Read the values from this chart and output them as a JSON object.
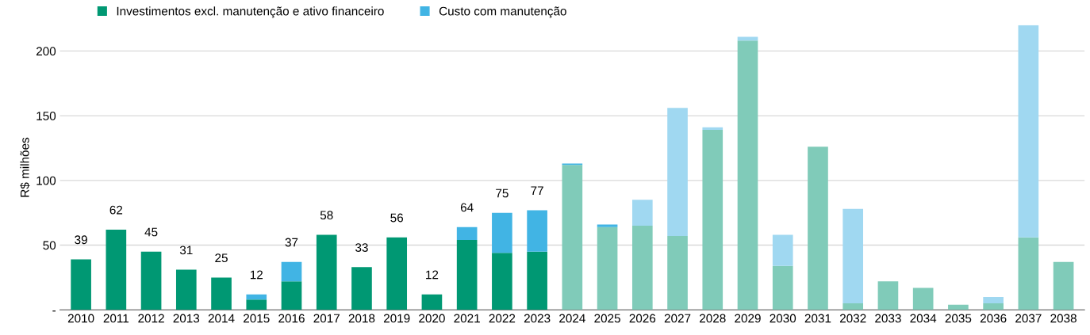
{
  "chart_data": {
    "type": "bar",
    "stacked": true,
    "ylabel": "R$ milhões",
    "categories": [
      "2010",
      "2011",
      "2012",
      "2013",
      "2014",
      "2015",
      "2016",
      "2017",
      "2018",
      "2019",
      "2020",
      "2021",
      "2022",
      "2023",
      "2024",
      "2025",
      "2026",
      "2027",
      "2028",
      "2029",
      "2030",
      "2031",
      "2032",
      "2033",
      "2034",
      "2035",
      "2036",
      "2037",
      "2038"
    ],
    "series": [
      {
        "name": "Investimentos excl. manutenção e ativo financeiro",
        "color": "#009873",
        "colors": [
          "#009873",
          "#009873",
          "#009873",
          "#009873",
          "#009873",
          "#009873",
          "#009873",
          "#009873",
          "#009873",
          "#009873",
          "#009873",
          "#009873",
          "#009873",
          "#009873",
          "#80cbb9",
          "#80cbb9",
          "#80cbb9",
          "#80cbb9",
          "#80cbb9",
          "#80cbb9",
          "#80cbb9",
          "#80cbb9",
          "#80cbb9",
          "#80cbb9",
          "#80cbb9",
          "#80cbb9",
          "#80cbb9",
          "#80cbb9",
          "#80cbb9"
        ],
        "values": [
          39,
          62,
          45,
          31,
          25,
          8,
          22,
          58,
          33,
          56,
          12,
          54,
          44,
          45,
          112,
          64,
          65,
          57,
          139,
          208,
          34,
          126,
          5,
          22,
          17,
          4,
          5,
          56,
          37
        ]
      },
      {
        "name": "Custo com manutenção",
        "color": "#41b4e4",
        "colors": [
          "#41b4e4",
          "#41b4e4",
          "#41b4e4",
          "#41b4e4",
          "#41b4e4",
          "#41b4e4",
          "#41b4e4",
          "#41b4e4",
          "#41b4e4",
          "#41b4e4",
          "#41b4e4",
          "#41b4e4",
          "#41b4e4",
          "#41b4e4",
          "#41b4e4",
          "#41b4e4",
          "#a0d8f1",
          "#a0d8f1",
          "#a0d8f1",
          "#a0d8f1",
          "#a0d8f1",
          "#a0d8f1",
          "#a0d8f1",
          "#a0d8f1",
          "#a0d8f1",
          "#a0d8f1",
          "#a0d8f1",
          "#a0d8f1",
          "#a0d8f1"
        ],
        "values": [
          0,
          0,
          0,
          0,
          0,
          4,
          15,
          0,
          0,
          0,
          0,
          10,
          31,
          32,
          1,
          2,
          20,
          99,
          2,
          3,
          24,
          0,
          73,
          0,
          0,
          0,
          5,
          164,
          0
        ]
      }
    ],
    "totals": [
      "39",
      "62",
      "45",
      "31",
      "25",
      "12",
      "37",
      "58",
      "33",
      "56",
      "12",
      "64",
      "75",
      "77",
      null,
      null,
      null,
      null,
      null,
      null,
      null,
      null,
      null,
      null,
      null,
      null,
      null,
      null,
      null
    ],
    "ylim": [
      0,
      220
    ],
    "yticks": [
      {
        "value": 0,
        "label": "-"
      },
      50,
      100,
      150,
      200
    ],
    "grid": "y",
    "legend": "top left"
  }
}
